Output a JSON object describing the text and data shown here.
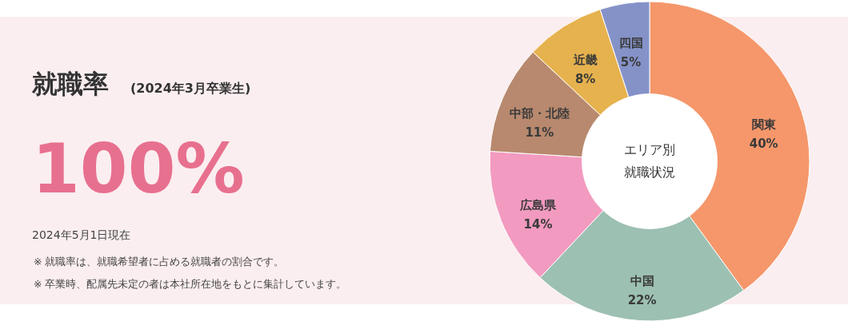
{
  "chart_data": [
    {
      "type": "other",
      "title": "就職率",
      "subtitle": "(2024年3月卒業生)",
      "annotations": [
        "100%",
        "2024年5月1日現在",
        "※ 就職率は、就職希望者に占める就職者の割合です。",
        "※ 卒業時、配属先未定の者は本社所在地をもとに集計しています。"
      ]
    },
    {
      "type": "donut",
      "categories": [
        "関東",
        "中国",
        "広島県",
        "中部・北陸",
        "近畿",
        "四国"
      ],
      "values": [
        40,
        22,
        14,
        11,
        8,
        5
      ],
      "colors": [
        "#f5976b",
        "#9cc0b2",
        "#f29ac0",
        "#b8896e",
        "#e6b24e",
        "#8592c8"
      ],
      "value_labels": [
        "40%",
        "22%",
        "14%",
        "11%",
        "8%",
        "5%"
      ],
      "annotations": [
        "エリア別",
        "就職状況"
      ]
    }
  ]
}
